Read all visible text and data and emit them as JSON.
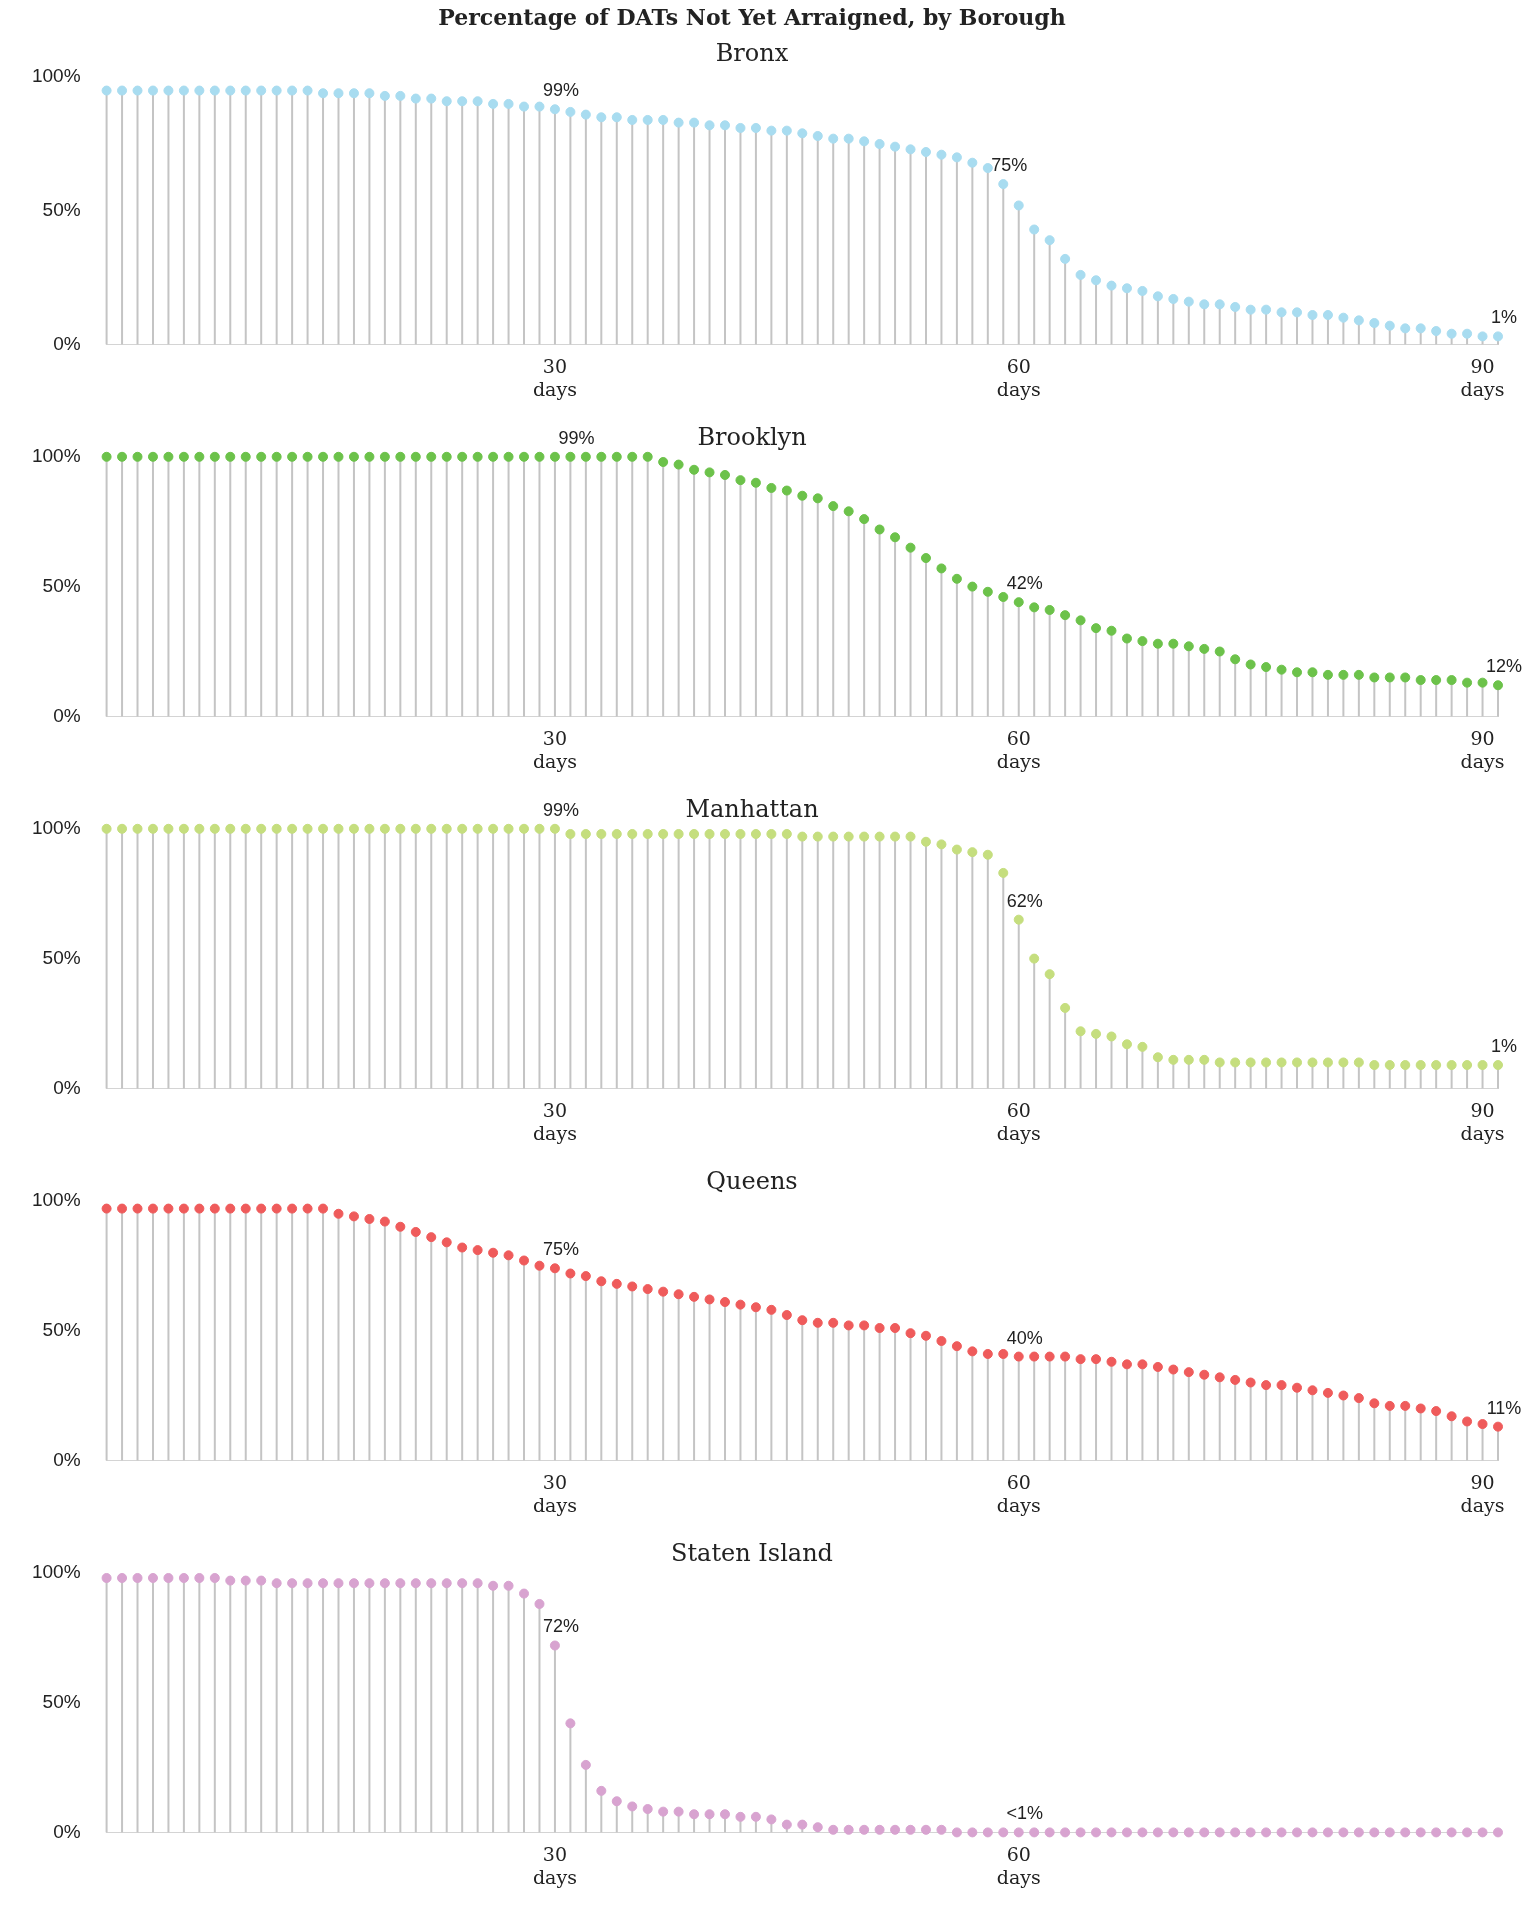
{
  "chart_data": [
    {
      "type": "lollipop",
      "title": "Percentage of DATs Not Yet Arraigned, by Borough",
      "subtitle": "Bronx",
      "color": "#a8dcf0",
      "marker": "circle",
      "x": [
        1,
        2,
        3,
        4,
        5,
        6,
        7,
        8,
        9,
        10,
        11,
        12,
        13,
        14,
        15,
        16,
        17,
        18,
        19,
        20,
        21,
        22,
        23,
        24,
        25,
        26,
        27,
        28,
        29,
        30,
        31,
        32,
        33,
        34,
        35,
        36,
        37,
        38,
        39,
        40,
        41,
        42,
        43,
        44,
        45,
        46,
        47,
        48,
        49,
        50,
        51,
        52,
        53,
        54,
        55,
        56,
        57,
        58,
        59,
        60,
        61,
        62,
        63,
        64,
        65,
        66,
        67,
        68,
        69,
        70,
        71,
        72,
        73,
        74,
        75,
        76,
        77,
        78,
        79,
        80,
        81,
        82,
        83,
        84,
        85,
        86,
        87,
        88,
        89,
        90,
        91
      ],
      "values": [
        95,
        95,
        95,
        95,
        95,
        95,
        95,
        95,
        95,
        95,
        95,
        95,
        95,
        95,
        94,
        94,
        94,
        94,
        93,
        93,
        92,
        92,
        91,
        91,
        91,
        90,
        90,
        89,
        89,
        88,
        87,
        86,
        85,
        85,
        84,
        84,
        84,
        83,
        83,
        82,
        82,
        81,
        81,
        80,
        80,
        79,
        78,
        77,
        77,
        76,
        75,
        74,
        73,
        72,
        71,
        70,
        68,
        66,
        60,
        52,
        43,
        39,
        32,
        26,
        24,
        22,
        21,
        20,
        18,
        17,
        16,
        15,
        15,
        14,
        13,
        13,
        12,
        12,
        11,
        11,
        10,
        9,
        8,
        7,
        6,
        6,
        5,
        4,
        4,
        3,
        3
      ],
      "xlim": [
        1,
        91
      ],
      "xticks": [
        {
          "value": 30,
          "label": "30 days"
        },
        {
          "value": 60,
          "label": "60 days"
        },
        {
          "value": 90,
          "label": "90 days"
        }
      ],
      "ylim": [
        0,
        100
      ],
      "yticks": [
        {
          "value": 0,
          "label": "0%"
        },
        {
          "value": 50,
          "label": "50%"
        },
        {
          "value": 100,
          "label": "100%"
        }
      ],
      "annotations": [
        {
          "text": "99%",
          "x": 30,
          "y": 88
        },
        {
          "text": "75%",
          "x": 59,
          "y": 60
        },
        {
          "text": "1%",
          "x": 91,
          "y": 3
        }
      ]
    },
    {
      "type": "lollipop",
      "title": "Brooklyn",
      "color": "#6cc24a",
      "marker": "circle",
      "x": [
        1,
        2,
        3,
        4,
        5,
        6,
        7,
        8,
        9,
        10,
        11,
        12,
        13,
        14,
        15,
        16,
        17,
        18,
        19,
        20,
        21,
        22,
        23,
        24,
        25,
        26,
        27,
        28,
        29,
        30,
        31,
        32,
        33,
        34,
        35,
        36,
        37,
        38,
        39,
        40,
        41,
        42,
        43,
        44,
        45,
        46,
        47,
        48,
        49,
        50,
        51,
        52,
        53,
        54,
        55,
        56,
        57,
        58,
        59,
        60,
        61,
        62,
        63,
        64,
        65,
        66,
        67,
        68,
        69,
        70,
        71,
        72,
        73,
        74,
        75,
        76,
        77,
        78,
        79,
        80,
        81,
        82,
        83,
        84,
        85,
        86,
        87,
        88,
        89,
        90,
        91
      ],
      "values": [
        100,
        100,
        100,
        100,
        100,
        100,
        100,
        100,
        100,
        100,
        100,
        100,
        100,
        100,
        100,
        100,
        100,
        100,
        100,
        100,
        100,
        100,
        100,
        100,
        100,
        100,
        100,
        100,
        100,
        100,
        100,
        100,
        100,
        100,
        100,
        100,
        98,
        97,
        95,
        94,
        93,
        91,
        90,
        88,
        87,
        85,
        84,
        81,
        79,
        76,
        72,
        69,
        65,
        61,
        57,
        53,
        50,
        48,
        46,
        44,
        42,
        41,
        39,
        37,
        34,
        33,
        30,
        29,
        28,
        28,
        27,
        26,
        25,
        22,
        20,
        19,
        18,
        17,
        17,
        16,
        16,
        16,
        15,
        15,
        15,
        14,
        14,
        14,
        13,
        13,
        12
      ],
      "xlim": [
        1,
        91
      ],
      "xticks": [
        {
          "value": 30,
          "label": "30 days"
        },
        {
          "value": 60,
          "label": "60 days"
        },
        {
          "value": 90,
          "label": "90 days"
        }
      ],
      "ylim": [
        0,
        100
      ],
      "yticks": [
        {
          "value": 0,
          "label": "0%"
        },
        {
          "value": 50,
          "label": "50%"
        },
        {
          "value": 100,
          "label": "100%"
        }
      ],
      "annotations": [
        {
          "text": "99%",
          "x": 31,
          "y": 100
        },
        {
          "text": "42%",
          "x": 60,
          "y": 44
        },
        {
          "text": "12%",
          "x": 91,
          "y": 12
        }
      ]
    },
    {
      "type": "lollipop",
      "title": "Manhattan",
      "color": "#c5de7e",
      "marker": "circle",
      "x": [
        1,
        2,
        3,
        4,
        5,
        6,
        7,
        8,
        9,
        10,
        11,
        12,
        13,
        14,
        15,
        16,
        17,
        18,
        19,
        20,
        21,
        22,
        23,
        24,
        25,
        26,
        27,
        28,
        29,
        30,
        31,
        32,
        33,
        34,
        35,
        36,
        37,
        38,
        39,
        40,
        41,
        42,
        43,
        44,
        45,
        46,
        47,
        48,
        49,
        50,
        51,
        52,
        53,
        54,
        55,
        56,
        57,
        58,
        59,
        60,
        61,
        62,
        63,
        64,
        65,
        66,
        67,
        68,
        69,
        70,
        71,
        72,
        73,
        74,
        75,
        76,
        77,
        78,
        79,
        80,
        81,
        82,
        83,
        84,
        85,
        86,
        87,
        88,
        89,
        90,
        91
      ],
      "values": [
        100,
        100,
        100,
        100,
        100,
        100,
        100,
        100,
        100,
        100,
        100,
        100,
        100,
        100,
        100,
        100,
        100,
        100,
        100,
        100,
        100,
        100,
        100,
        100,
        100,
        100,
        100,
        100,
        100,
        100,
        98,
        98,
        98,
        98,
        98,
        98,
        98,
        98,
        98,
        98,
        98,
        98,
        98,
        98,
        98,
        97,
        97,
        97,
        97,
        97,
        97,
        97,
        97,
        95,
        94,
        92,
        91,
        90,
        83,
        65,
        50,
        44,
        31,
        22,
        21,
        20,
        17,
        16,
        12,
        11,
        11,
        11,
        10,
        10,
        10,
        10,
        10,
        10,
        10,
        10,
        10,
        10,
        9,
        9,
        9,
        9,
        9,
        9,
        9,
        9,
        9
      ],
      "xlim": [
        1,
        91
      ],
      "xticks": [
        {
          "value": 30,
          "label": "30 days"
        },
        {
          "value": 60,
          "label": "60 days"
        },
        {
          "value": 90,
          "label": "90 days"
        }
      ],
      "ylim": [
        0,
        100
      ],
      "yticks": [
        {
          "value": 0,
          "label": "0%"
        },
        {
          "value": 50,
          "label": "50%"
        },
        {
          "value": 100,
          "label": "100%"
        }
      ],
      "annotations": [
        {
          "text": "99%",
          "x": 30,
          "y": 100
        },
        {
          "text": "62%",
          "x": 60,
          "y": 65
        },
        {
          "text": "1%",
          "x": 91,
          "y": 9
        }
      ]
    },
    {
      "type": "lollipop",
      "title": "Queens",
      "color": "#ef5b5b",
      "marker": "circle",
      "x": [
        1,
        2,
        3,
        4,
        5,
        6,
        7,
        8,
        9,
        10,
        11,
        12,
        13,
        14,
        15,
        16,
        17,
        18,
        19,
        20,
        21,
        22,
        23,
        24,
        25,
        26,
        27,
        28,
        29,
        30,
        31,
        32,
        33,
        34,
        35,
        36,
        37,
        38,
        39,
        40,
        41,
        42,
        43,
        44,
        45,
        46,
        47,
        48,
        49,
        50,
        51,
        52,
        53,
        54,
        55,
        56,
        57,
        58,
        59,
        60,
        61,
        62,
        63,
        64,
        65,
        66,
        67,
        68,
        69,
        70,
        71,
        72,
        73,
        74,
        75,
        76,
        77,
        78,
        79,
        80,
        81,
        82,
        83,
        84,
        85,
        86,
        87,
        88,
        89,
        90,
        91
      ],
      "values": [
        97,
        97,
        97,
        97,
        97,
        97,
        97,
        97,
        97,
        97,
        97,
        97,
        97,
        97,
        97,
        95,
        94,
        93,
        92,
        90,
        88,
        86,
        84,
        82,
        81,
        80,
        79,
        77,
        75,
        74,
        72,
        71,
        69,
        68,
        67,
        66,
        65,
        64,
        63,
        62,
        61,
        60,
        59,
        58,
        56,
        54,
        53,
        53,
        52,
        52,
        51,
        51,
        49,
        48,
        46,
        44,
        42,
        41,
        41,
        40,
        40,
        40,
        40,
        39,
        39,
        38,
        37,
        37,
        36,
        35,
        34,
        33,
        32,
        31,
        30,
        29,
        29,
        28,
        27,
        26,
        25,
        24,
        22,
        21,
        21,
        20,
        19,
        17,
        15,
        14,
        13
      ],
      "xlim": [
        1,
        91
      ],
      "xticks": [
        {
          "value": 30,
          "label": "30 days"
        },
        {
          "value": 60,
          "label": "60 days"
        },
        {
          "value": 90,
          "label": "90 days"
        }
      ],
      "ylim": [
        0,
        100
      ],
      "yticks": [
        {
          "value": 0,
          "label": "0%"
        },
        {
          "value": 50,
          "label": "50%"
        },
        {
          "value": 100,
          "label": "100%"
        }
      ],
      "annotations": [
        {
          "text": "75%",
          "x": 30,
          "y": 74
        },
        {
          "text": "40%",
          "x": 60,
          "y": 40
        },
        {
          "text": "11%",
          "x": 91,
          "y": 13
        }
      ]
    },
    {
      "type": "lollipop",
      "title": "Staten Island",
      "color": "#d8a3d0",
      "marker": "circle",
      "x": [
        1,
        2,
        3,
        4,
        5,
        6,
        7,
        8,
        9,
        10,
        11,
        12,
        13,
        14,
        15,
        16,
        17,
        18,
        19,
        20,
        21,
        22,
        23,
        24,
        25,
        26,
        27,
        28,
        29,
        30,
        31,
        32,
        33,
        34,
        35,
        36,
        37,
        38,
        39,
        40,
        41,
        42,
        43,
        44,
        45,
        46,
        47,
        48,
        49,
        50,
        51,
        52,
        53,
        54,
        55,
        56,
        57,
        58,
        59,
        60,
        61,
        62,
        63,
        64,
        65,
        66,
        67,
        68,
        69,
        70,
        71,
        72,
        73,
        74,
        75,
        76,
        77,
        78,
        79,
        80,
        81,
        82,
        83,
        84,
        85,
        86,
        87,
        88,
        89,
        90,
        91
      ],
      "values": [
        98,
        98,
        98,
        98,
        98,
        98,
        98,
        98,
        97,
        97,
        97,
        96,
        96,
        96,
        96,
        96,
        96,
        96,
        96,
        96,
        96,
        96,
        96,
        96,
        96,
        95,
        95,
        92,
        88,
        72,
        42,
        26,
        16,
        12,
        10,
        9,
        8,
        8,
        7,
        7,
        7,
        6,
        6,
        5,
        3,
        3,
        2,
        1,
        1,
        1,
        1,
        1,
        1,
        1,
        1,
        0,
        0,
        0,
        0,
        0,
        0,
        0,
        0,
        0,
        0,
        0,
        0,
        0,
        0,
        0,
        0,
        0,
        0,
        0,
        0,
        0,
        0,
        0,
        0,
        0,
        0,
        0,
        0,
        0,
        0,
        0,
        0,
        0,
        0,
        0,
        0
      ],
      "xlim": [
        1,
        91
      ],
      "xticks": [
        {
          "value": 30,
          "label": "30 days"
        },
        {
          "value": 60,
          "label": "60 days"
        }
      ],
      "ylim": [
        0,
        100
      ],
      "yticks": [
        {
          "value": 0,
          "label": "0%"
        },
        {
          "value": 50,
          "label": "50%"
        },
        {
          "value": 100,
          "label": "100%"
        }
      ],
      "annotations": [
        {
          "text": "72%",
          "x": 30,
          "y": 72
        },
        {
          "text": "<1%",
          "x": 60,
          "y": 0
        }
      ]
    }
  ]
}
